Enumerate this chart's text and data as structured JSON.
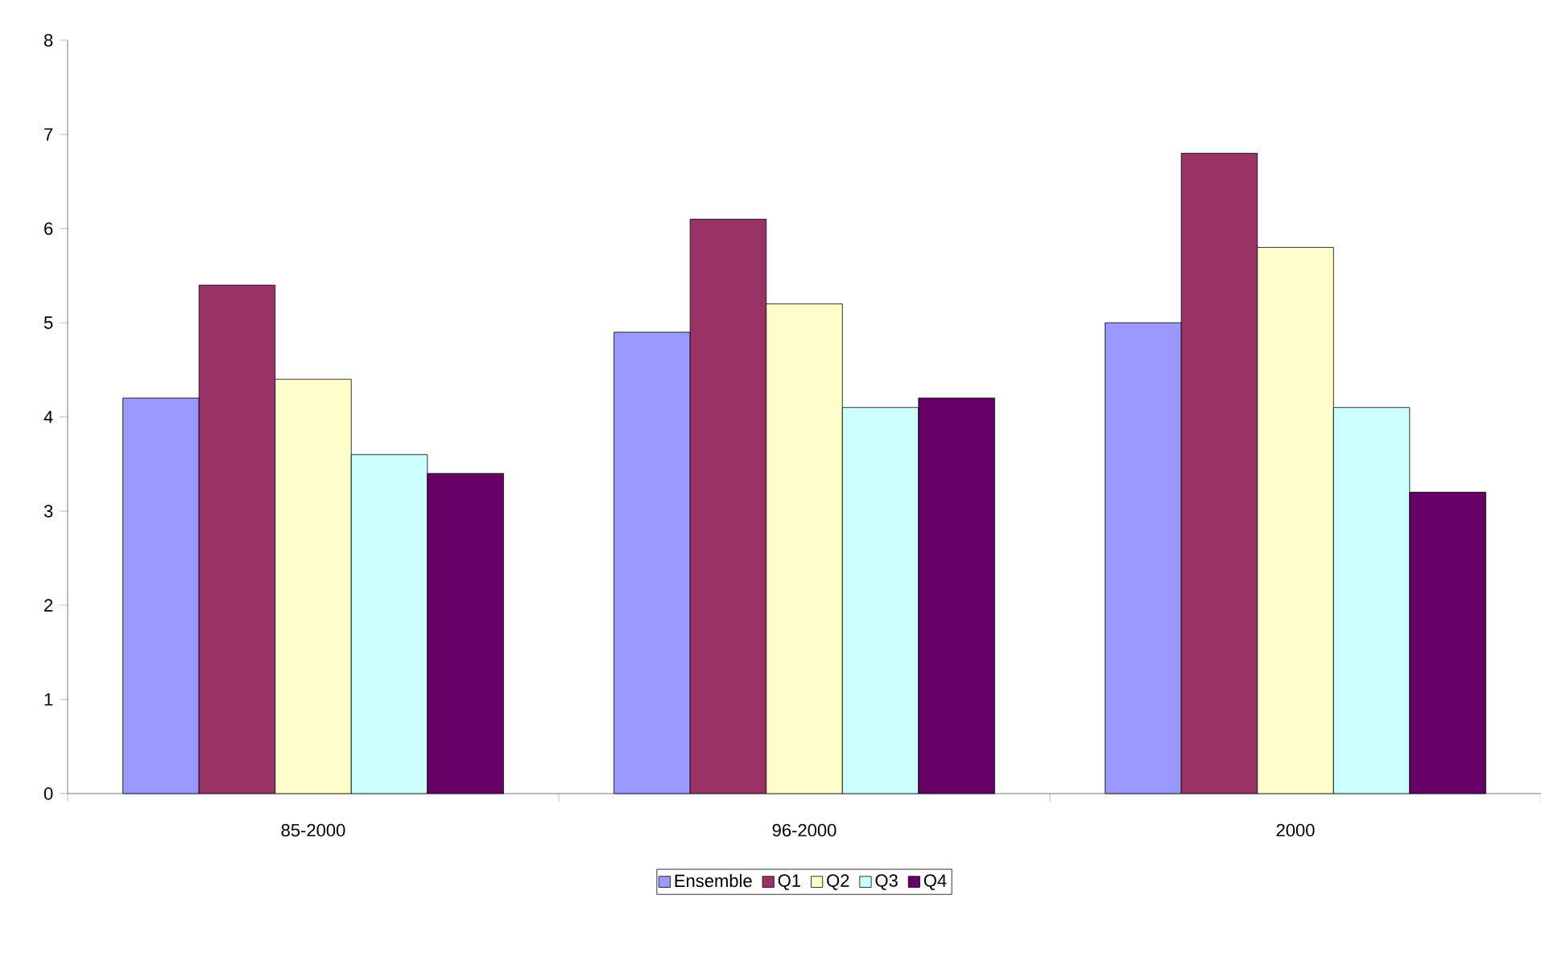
{
  "chart_data": {
    "type": "bar",
    "categories": [
      "85-2000",
      "96-2000",
      "2000"
    ],
    "series": [
      {
        "name": "Ensemble",
        "color": "#9999ff",
        "values": [
          4.2,
          4.9,
          5.0
        ]
      },
      {
        "name": "Q1",
        "color": "#993366",
        "values": [
          5.4,
          6.1,
          6.8
        ]
      },
      {
        "name": "Q2",
        "color": "#ffffcc",
        "values": [
          4.4,
          5.2,
          5.8
        ]
      },
      {
        "name": "Q3",
        "color": "#ccffff",
        "values": [
          3.6,
          4.1,
          4.1
        ]
      },
      {
        "name": "Q4",
        "color": "#660066",
        "values": [
          3.4,
          4.2,
          3.2
        ]
      }
    ],
    "ylim": [
      0,
      8
    ],
    "yticks": [
      0,
      1,
      2,
      3,
      4,
      5,
      6,
      7,
      8
    ],
    "legend": "bottom"
  }
}
